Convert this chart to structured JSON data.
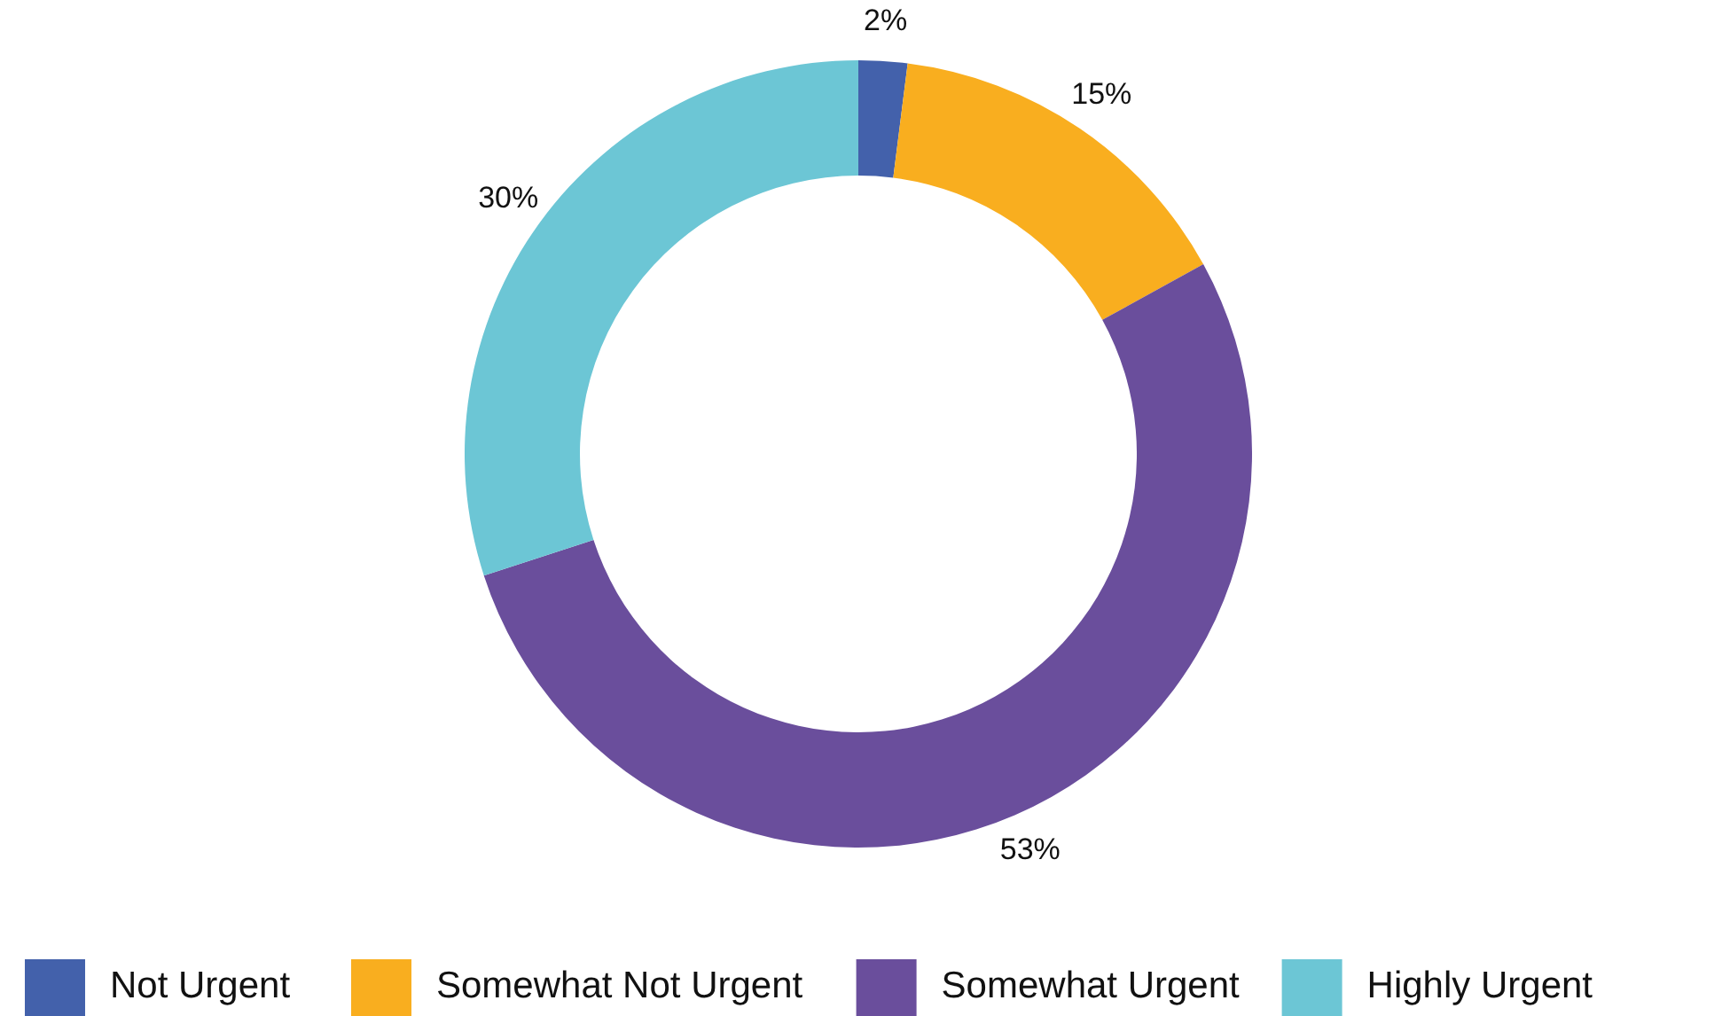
{
  "chart_data": {
    "type": "donut",
    "categories": [
      "Not Urgent",
      "Somewhat Not Urgent",
      "Somewhat Urgent",
      "Highly Urgent"
    ],
    "values": [
      2,
      15,
      53,
      30
    ],
    "colors": [
      "#4361ab",
      "#f9ae1f",
      "#6a4e9c",
      "#6cc6d5"
    ],
    "value_labels": [
      "2%",
      "15%",
      "53%",
      "30%"
    ],
    "legend": "bottom"
  }
}
